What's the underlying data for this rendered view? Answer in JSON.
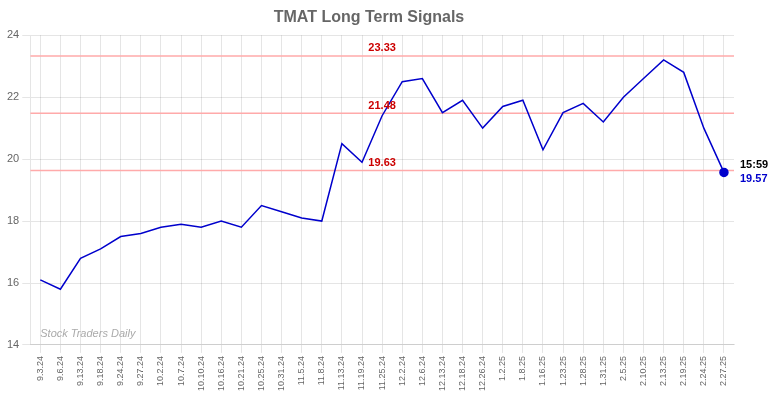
{
  "chart_data": {
    "type": "line",
    "title": "TMAT Long Term Signals",
    "categories": [
      "9.3.24",
      "9.6.24",
      "9.13.24",
      "9.18.24",
      "9.24.24",
      "9.27.24",
      "10.2.24",
      "10.7.24",
      "10.10.24",
      "10.16.24",
      "10.21.24",
      "10.25.24",
      "10.31.24",
      "11.5.24",
      "11.8.24",
      "11.13.24",
      "11.19.24",
      "11.25.24",
      "12.2.24",
      "12.6.24",
      "12.13.24",
      "12.18.24",
      "12.26.24",
      "1.2.25",
      "1.8.25",
      "1.16.25",
      "1.23.25",
      "1.28.25",
      "1.31.25",
      "2.5.25",
      "2.10.25",
      "2.13.25",
      "2.19.25",
      "2.24.25",
      "2.27.25"
    ],
    "values": [
      16.1,
      15.8,
      16.8,
      17.1,
      17.5,
      17.6,
      17.8,
      17.9,
      17.8,
      18.0,
      17.8,
      18.5,
      18.3,
      18.1,
      18.0,
      20.5,
      19.9,
      21.4,
      22.5,
      22.6,
      21.5,
      21.9,
      21.0,
      21.7,
      21.9,
      20.3,
      21.5,
      21.8,
      21.2,
      22.0,
      22.6,
      23.2,
      22.8,
      21.0,
      19.57
    ],
    "color": "#0000cc",
    "ylim": [
      14,
      24
    ],
    "yticks": [
      14,
      16,
      18,
      20,
      22,
      24
    ],
    "grid": true,
    "reference_lines": [
      {
        "value": 23.33,
        "label": "23.33"
      },
      {
        "value": 21.48,
        "label": "21.48"
      },
      {
        "value": 19.63,
        "label": "19.63"
      }
    ],
    "reference_line_color": "#ffaaaa",
    "reference_label_color": "#cc0000",
    "last_point": {
      "value": 19.57,
      "time_label": "15:59",
      "time_label_color": "#000000",
      "value_label": "19.57",
      "value_label_color": "#0000cc"
    },
    "watermark": "Stock Traders Daily"
  }
}
